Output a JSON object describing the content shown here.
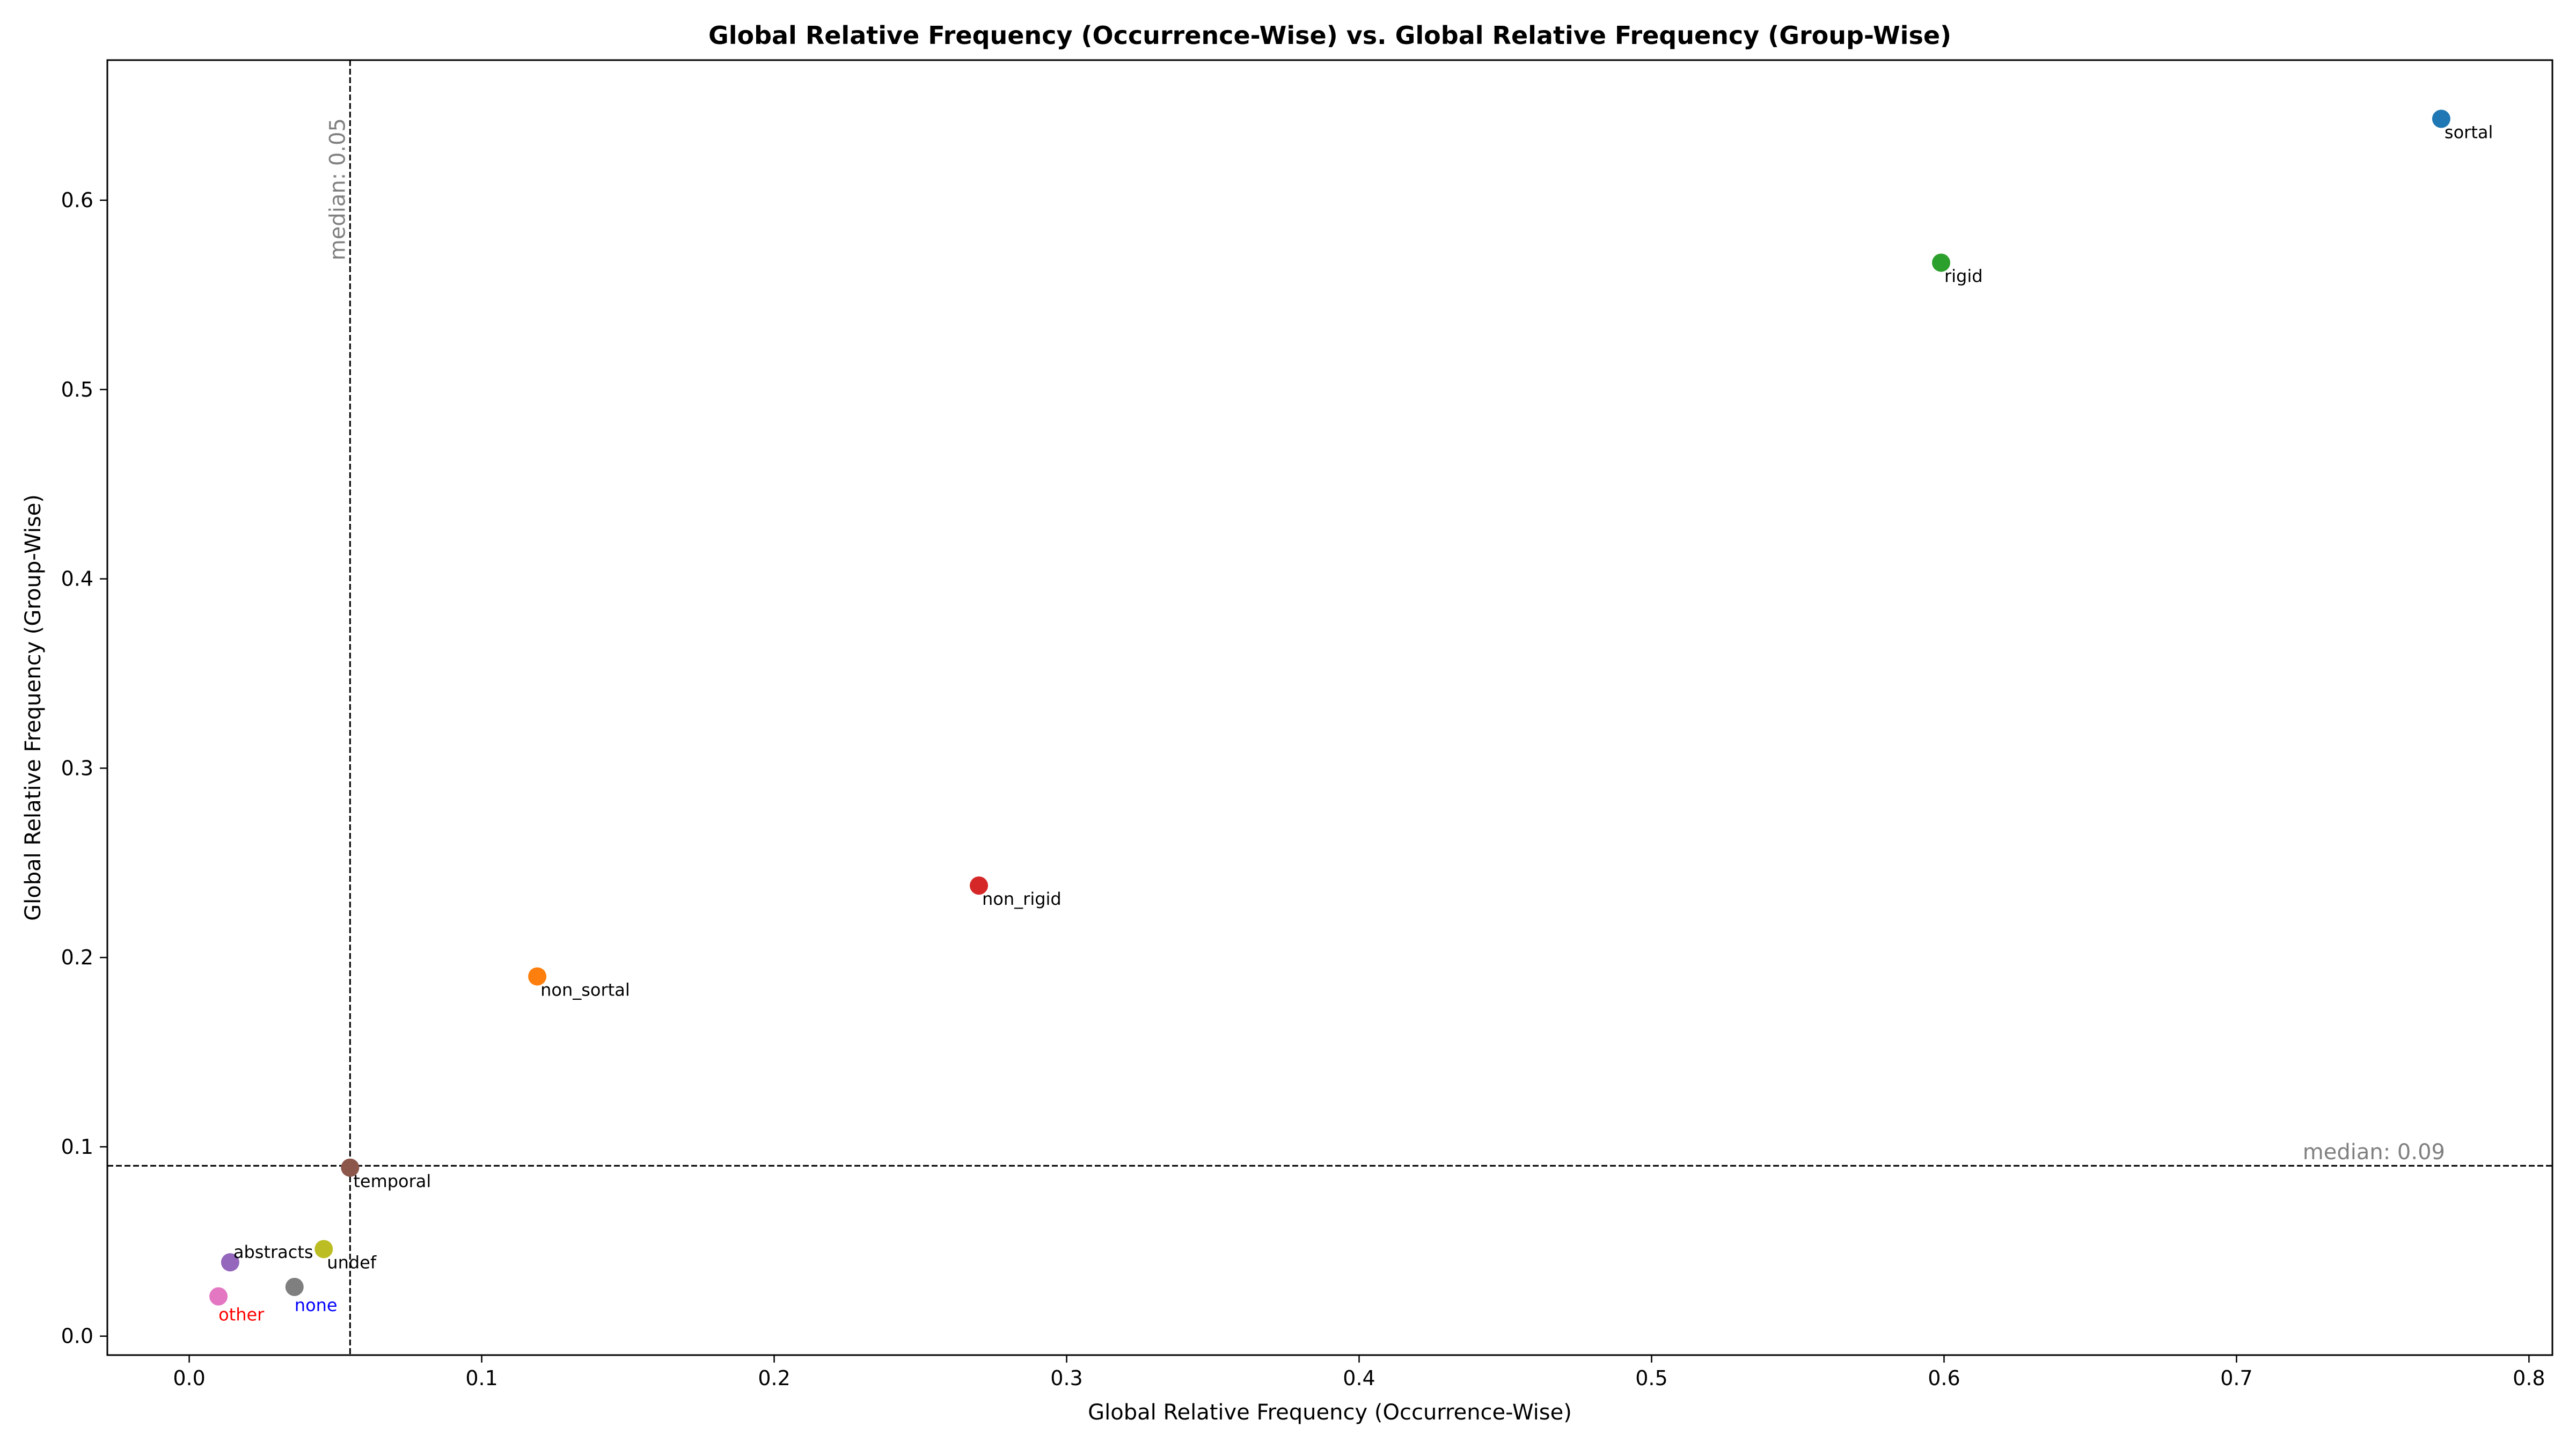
{
  "chart_data": {
    "type": "scatter",
    "title": "Global Relative Frequency (Occurrence-Wise) vs. Global Relative Frequency (Group-Wise)",
    "xlabel": "Global Relative Frequency (Occurrence-Wise)",
    "ylabel": "Global Relative Frequency (Group-Wise)",
    "xlim": [
      -0.028,
      0.808
    ],
    "ylim": [
      -0.01,
      0.674
    ],
    "xticks": [
      0.0,
      0.1,
      0.2,
      0.3,
      0.4,
      0.5,
      0.6,
      0.7,
      0.8
    ],
    "xtick_labels": [
      "0.0",
      "0.1",
      "0.2",
      "0.3",
      "0.4",
      "0.5",
      "0.6",
      "0.7",
      "0.8"
    ],
    "yticks": [
      0.0,
      0.1,
      0.2,
      0.3,
      0.4,
      0.5,
      0.6
    ],
    "ytick_labels": [
      "0.0",
      "0.1",
      "0.2",
      "0.3",
      "0.4",
      "0.5",
      "0.6"
    ],
    "grid": false,
    "points": [
      {
        "label": "sortal",
        "x": 0.77,
        "y": 0.643,
        "color": "#1f77b4",
        "label_color": "#000000",
        "label_pos": "below-right"
      },
      {
        "label": "rigid",
        "x": 0.599,
        "y": 0.567,
        "color": "#2ca02c",
        "label_color": "#000000",
        "label_pos": "below-right"
      },
      {
        "label": "non_rigid",
        "x": 0.27,
        "y": 0.238,
        "color": "#d62728",
        "label_color": "#000000",
        "label_pos": "below-right"
      },
      {
        "label": "non_sortal",
        "x": 0.119,
        "y": 0.19,
        "color": "#ff7f0e",
        "label_color": "#000000",
        "label_pos": "below-right"
      },
      {
        "label": "temporal",
        "x": 0.055,
        "y": 0.089,
        "color": "#8c564b",
        "label_color": "#000000",
        "label_pos": "below-right"
      },
      {
        "label": "undef",
        "x": 0.046,
        "y": 0.046,
        "color": "#bcbd22",
        "label_color": "#000000",
        "label_pos": "below-right"
      },
      {
        "label": "abstracts",
        "x": 0.014,
        "y": 0.039,
        "color": "#9467bd",
        "label_color": "#000000",
        "label_pos": "above-right"
      },
      {
        "label": "none",
        "x": 0.036,
        "y": 0.026,
        "color": "#7f7f7f",
        "label_color": "#0000ff",
        "label_pos": "below"
      },
      {
        "label": "other",
        "x": 0.01,
        "y": 0.021,
        "color": "#e377c2",
        "label_color": "#ff0000",
        "label_pos": "below"
      }
    ],
    "reference_lines": [
      {
        "orientation": "vertical",
        "value": 0.055,
        "label": "median: 0.05",
        "color": "#808080"
      },
      {
        "orientation": "horizontal",
        "value": 0.09,
        "label": "median: 0.09",
        "color": "#808080"
      }
    ]
  }
}
